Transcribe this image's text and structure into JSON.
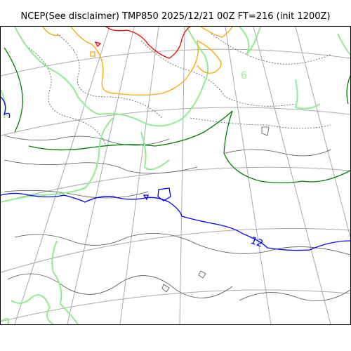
{
  "title": "NCEP(See disclaimer) TMP850 2025/12/21 00Z FT=216 (init 1200Z)",
  "map": {
    "field": "TMP850",
    "contour_labels": [
      {
        "text": "6",
        "color": "#90ee90"
      },
      {
        "text": "12",
        "color": "#0000ff"
      }
    ],
    "colors": {
      "coastline": "#000000",
      "graticule": "#aaaaaa",
      "isotherm_red": "#ff0000",
      "isotherm_orange": "#ffa500",
      "isotherm_lightgreen": "#90ee90",
      "isotherm_green": "#008000",
      "isotherm_blue": "#0000ff",
      "thin_contour": "#555555"
    }
  }
}
